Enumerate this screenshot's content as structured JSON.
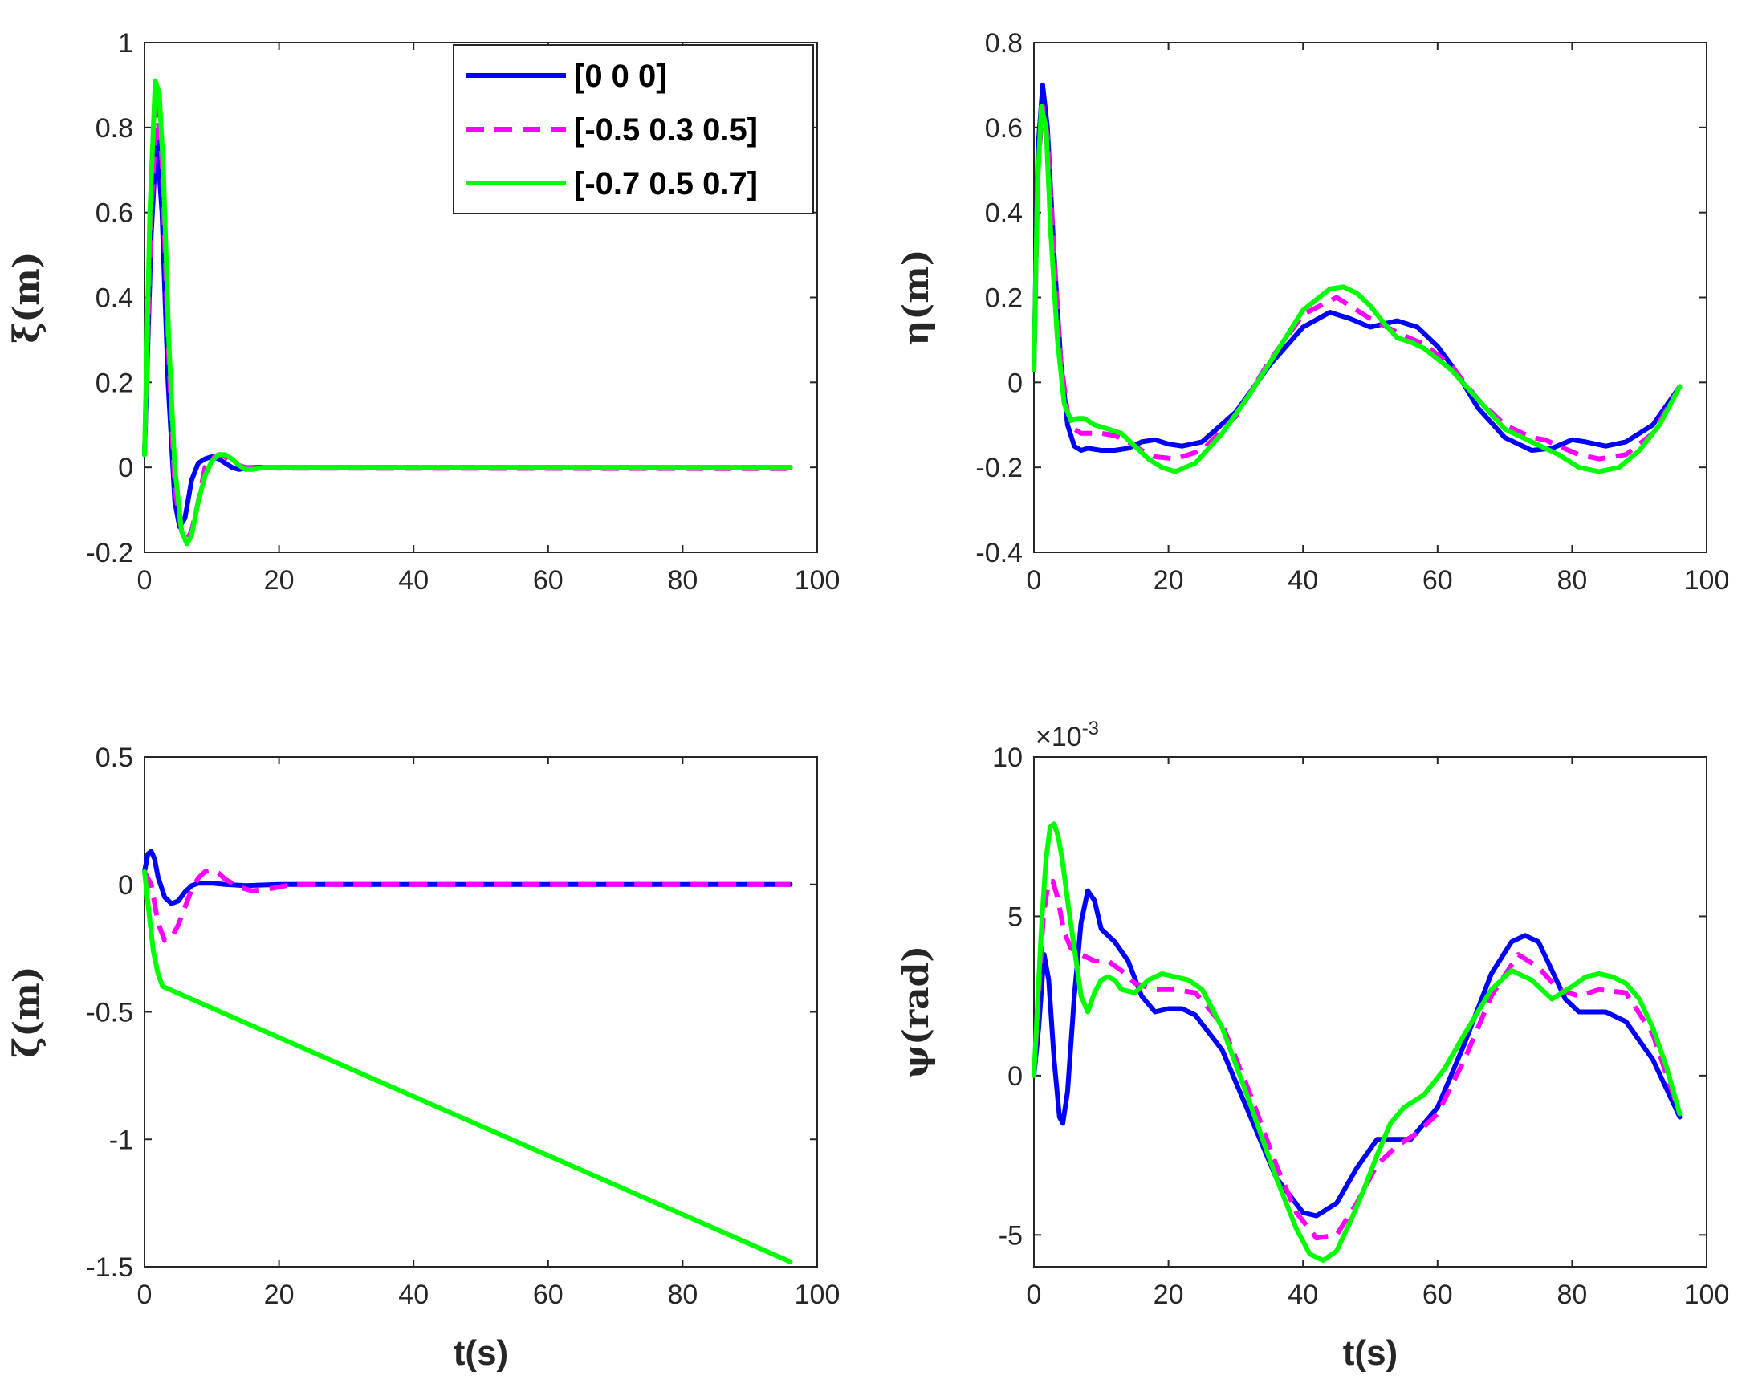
{
  "chart_data": [
    {
      "type": "line",
      "panel": "top-left",
      "xlabel": "",
      "ylabel": "ξ(m)",
      "xlim": [
        0,
        100
      ],
      "ylim": [
        -0.2,
        1
      ],
      "xticks": [
        0,
        20,
        40,
        60,
        80,
        100
      ],
      "xtick_labels": [
        "0",
        "20",
        "40",
        "60",
        "80",
        "100"
      ],
      "yticks": [
        -0.2,
        0,
        0.2,
        0.4,
        0.6,
        0.8,
        1
      ],
      "ytick_labels": [
        "-0.2",
        "0",
        "0.2",
        "0.4",
        "0.6",
        "0.8",
        "1"
      ],
      "exponent_label": "",
      "legend": {
        "location": "top-right"
      },
      "series": [
        {
          "name": "[0 0 0]",
          "color": "#0000FF",
          "style": "solid",
          "x": [
            0,
            1,
            1.8,
            2.6,
            3.5,
            4.5,
            5.2,
            6,
            7,
            8,
            9,
            10,
            11,
            12,
            13,
            14,
            16,
            20,
            96
          ],
          "y": [
            0.03,
            0.55,
            0.78,
            0.6,
            0.2,
            -0.08,
            -0.14,
            -0.12,
            -0.03,
            0.01,
            0.02,
            0.025,
            0.02,
            0.01,
            0.0,
            -0.005,
            0.0,
            0.0,
            0.0
          ]
        },
        {
          "name": "[-0.5 0.3 0.5]",
          "color": "#FF00FF",
          "style": "dashed",
          "x": [
            0,
            1,
            1.8,
            2.6,
            3.5,
            4.5,
            5.5,
            6.3,
            7,
            8,
            9,
            10,
            11,
            12,
            13,
            15,
            20,
            96
          ],
          "y": [
            0.03,
            0.6,
            0.85,
            0.72,
            0.3,
            -0.05,
            -0.15,
            -0.17,
            -0.15,
            -0.08,
            0.0,
            0.02,
            0.03,
            0.025,
            0.01,
            0.0,
            -0.002,
            -0.003
          ]
        },
        {
          "name": "[-0.7 0.5 0.7]",
          "color": "#00FF00",
          "style": "solid",
          "x": [
            0,
            0.8,
            1.6,
            2.2,
            2.8,
            3.6,
            4.5,
            5.5,
            6.3,
            7,
            8,
            9,
            10,
            11,
            12,
            13,
            14,
            15,
            16,
            18,
            20,
            96
          ],
          "y": [
            0.03,
            0.6,
            0.91,
            0.88,
            0.7,
            0.3,
            0.0,
            -0.15,
            -0.18,
            -0.16,
            -0.08,
            -0.02,
            0.015,
            0.03,
            0.03,
            0.02,
            0.005,
            -0.005,
            -0.005,
            0.0,
            0.0,
            0.0
          ]
        }
      ]
    },
    {
      "type": "line",
      "panel": "top-right",
      "xlabel": "",
      "ylabel": "η(m)",
      "xlim": [
        0,
        100
      ],
      "ylim": [
        -0.4,
        0.8
      ],
      "xticks": [
        0,
        20,
        40,
        60,
        80,
        100
      ],
      "xtick_labels": [
        "0",
        "20",
        "40",
        "60",
        "80",
        "100"
      ],
      "yticks": [
        -0.4,
        -0.2,
        0,
        0.2,
        0.4,
        0.6,
        0.8
      ],
      "ytick_labels": [
        "-0.4",
        "-0.2",
        "0",
        "0.2",
        "0.4",
        "0.6",
        "0.8"
      ],
      "exponent_label": "",
      "series": [
        {
          "name": "[0 0 0]",
          "color": "#0000FF",
          "style": "solid",
          "x": [
            0,
            0.6,
            1.3,
            2,
            3,
            4,
            5,
            6,
            7,
            8,
            10,
            12,
            14,
            16,
            18,
            20,
            22,
            25,
            30,
            35,
            40,
            44,
            47,
            50,
            54,
            57,
            60,
            63,
            66,
            70,
            74,
            77,
            80,
            82,
            85,
            88,
            92,
            96
          ],
          "y": [
            0.03,
            0.55,
            0.7,
            0.6,
            0.3,
            0.05,
            -0.1,
            -0.15,
            -0.16,
            -0.155,
            -0.16,
            -0.16,
            -0.155,
            -0.14,
            -0.135,
            -0.145,
            -0.15,
            -0.14,
            -0.07,
            0.04,
            0.13,
            0.165,
            0.15,
            0.13,
            0.145,
            0.13,
            0.085,
            0.02,
            -0.06,
            -0.13,
            -0.16,
            -0.155,
            -0.135,
            -0.14,
            -0.15,
            -0.14,
            -0.1,
            -0.01
          ]
        },
        {
          "name": "[-0.5 0.3 0.5]",
          "color": "#FF00FF",
          "style": "dashed",
          "x": [
            0,
            0.6,
            1.3,
            2,
            3,
            4,
            5,
            6,
            7,
            8,
            10,
            12,
            14,
            16,
            18,
            21,
            25,
            30,
            35,
            40,
            45,
            50,
            55,
            58,
            62,
            66,
            70,
            74,
            76,
            78,
            81,
            84,
            88,
            92,
            96
          ],
          "y": [
            0.03,
            0.5,
            0.65,
            0.58,
            0.3,
            0.05,
            -0.07,
            -0.11,
            -0.12,
            -0.12,
            -0.12,
            -0.125,
            -0.14,
            -0.16,
            -0.175,
            -0.18,
            -0.16,
            -0.08,
            0.05,
            0.16,
            0.2,
            0.15,
            0.11,
            0.09,
            0.04,
            -0.04,
            -0.1,
            -0.13,
            -0.135,
            -0.15,
            -0.17,
            -0.18,
            -0.17,
            -0.12,
            -0.01
          ]
        },
        {
          "name": "[-0.7 0.5 0.7]",
          "color": "#00FF00",
          "style": "solid",
          "x": [
            0,
            0.5,
            1.1,
            1.8,
            2.5,
            3.5,
            4.5,
            5.5,
            6.5,
            7.5,
            9,
            11,
            13,
            15,
            17,
            19,
            21,
            24,
            28,
            32,
            36,
            40,
            44,
            46,
            48,
            50,
            52,
            54,
            56,
            58,
            62,
            66,
            70,
            74,
            78,
            81,
            84,
            87,
            90,
            93,
            96
          ],
          "y": [
            0.03,
            0.45,
            0.65,
            0.6,
            0.35,
            0.1,
            -0.05,
            -0.09,
            -0.085,
            -0.085,
            -0.1,
            -0.11,
            -0.12,
            -0.15,
            -0.18,
            -0.2,
            -0.21,
            -0.19,
            -0.12,
            -0.03,
            0.07,
            0.17,
            0.22,
            0.225,
            0.21,
            0.18,
            0.14,
            0.105,
            0.095,
            0.08,
            0.03,
            -0.04,
            -0.11,
            -0.14,
            -0.17,
            -0.2,
            -0.21,
            -0.2,
            -0.16,
            -0.1,
            -0.01
          ]
        }
      ]
    },
    {
      "type": "line",
      "panel": "bottom-left",
      "xlabel": "t(s)",
      "ylabel": "ζ(m)",
      "xlim": [
        0,
        100
      ],
      "ylim": [
        -1.5,
        0.5
      ],
      "xticks": [
        0,
        20,
        40,
        60,
        80,
        100
      ],
      "xtick_labels": [
        "0",
        "20",
        "40",
        "60",
        "80",
        "100"
      ],
      "yticks": [
        -1.5,
        -1,
        -0.5,
        0,
        0.5
      ],
      "ytick_labels": [
        "-1.5",
        "-1",
        "-0.5",
        "0",
        "0.5"
      ],
      "exponent_label": "",
      "series": [
        {
          "name": "[0 0 0]",
          "color": "#0000FF",
          "style": "solid",
          "x": [
            0,
            0.5,
            1,
            1.5,
            2,
            3,
            4,
            5,
            6,
            7,
            8,
            10,
            12,
            15,
            20,
            96
          ],
          "y": [
            0.05,
            0.12,
            0.13,
            0.1,
            0.03,
            -0.05,
            -0.075,
            -0.065,
            -0.03,
            -0.005,
            0.005,
            0.005,
            0.0,
            -0.005,
            0.0,
            0.0
          ]
        },
        {
          "name": "[-0.5 0.3 0.5]",
          "color": "#FF00FF",
          "style": "dashed",
          "x": [
            0,
            1,
            2,
            3,
            4,
            5,
            6,
            7,
            8,
            9,
            10,
            11,
            12,
            14,
            16,
            18,
            20,
            22,
            25,
            96
          ],
          "y": [
            0.05,
            0.0,
            -0.15,
            -0.22,
            -0.21,
            -0.16,
            -0.09,
            -0.02,
            0.025,
            0.05,
            0.055,
            0.045,
            0.02,
            -0.01,
            -0.025,
            -0.02,
            -0.01,
            0.0,
            0.0,
            0.0
          ]
        },
        {
          "name": "[-0.7 0.5 0.7]",
          "color": "#00FF00",
          "style": "solid",
          "x": [
            0,
            0.7,
            1.3,
            2,
            2.7,
            96
          ],
          "y": [
            0.05,
            -0.12,
            -0.26,
            -0.35,
            -0.4,
            -1.48
          ]
        }
      ]
    },
    {
      "type": "line",
      "panel": "bottom-right",
      "xlabel": "t(s)",
      "ylabel": "ψ(rad)",
      "xlim": [
        0,
        100
      ],
      "ylim": [
        -6,
        10
      ],
      "xticks": [
        0,
        20,
        40,
        60,
        80,
        100
      ],
      "xtick_labels": [
        "0",
        "20",
        "40",
        "60",
        "80",
        "100"
      ],
      "yticks": [
        -5,
        0,
        5,
        10
      ],
      "ytick_labels": [
        "-5",
        "0",
        "5",
        "10"
      ],
      "exponent_label": "×10",
      "exponent_power": "-3",
      "series": [
        {
          "name": "[0 0 0]",
          "color": "#0000FF",
          "style": "solid",
          "x": [
            0,
            0.7,
            1.5,
            2.2,
            3,
            3.8,
            4.3,
            5,
            6,
            7,
            8,
            9,
            10,
            12,
            14,
            16,
            18,
            20,
            22,
            24,
            28,
            32,
            36,
            40,
            42,
            45,
            48,
            51,
            53,
            56,
            60,
            64,
            68,
            71,
            73,
            75,
            77,
            79,
            81,
            83,
            85,
            88,
            92,
            96
          ],
          "y": [
            0,
            1.5,
            3.8,
            3.0,
            0.5,
            -1.3,
            -1.5,
            -0.5,
            2.5,
            4.8,
            5.8,
            5.5,
            4.6,
            4.2,
            3.6,
            2.5,
            2.0,
            2.1,
            2.1,
            1.9,
            0.8,
            -1.2,
            -3.2,
            -4.3,
            -4.4,
            -4.0,
            -2.9,
            -2.0,
            -2.0,
            -2.0,
            -1.0,
            1.0,
            3.2,
            4.2,
            4.4,
            4.2,
            3.3,
            2.4,
            2.0,
            2.0,
            2.0,
            1.7,
            0.5,
            -1.3
          ]
        },
        {
          "name": "[-0.5 0.3 0.5]",
          "color": "#FF00FF",
          "style": "dashed",
          "x": [
            0,
            0.7,
            1.4,
            2.1,
            2.8,
            3.5,
            4.5,
            5.5,
            7,
            9,
            11,
            13,
            15,
            18,
            21,
            24,
            28,
            32,
            36,
            39,
            42,
            45,
            48,
            51,
            54,
            57,
            60,
            64,
            68,
            72,
            75,
            78,
            81,
            84,
            88,
            92,
            96
          ],
          "y": [
            0,
            2.5,
            5.0,
            6.0,
            6.1,
            5.6,
            4.5,
            4.0,
            3.8,
            3.6,
            3.6,
            3.3,
            2.9,
            2.7,
            2.7,
            2.6,
            1.6,
            -0.5,
            -2.8,
            -4.3,
            -5.1,
            -5.0,
            -4.0,
            -2.8,
            -2.2,
            -1.8,
            -1.2,
            0.5,
            2.5,
            3.8,
            3.4,
            2.7,
            2.5,
            2.7,
            2.6,
            1.3,
            -1.2
          ]
        },
        {
          "name": "[-0.7 0.5 0.7]",
          "color": "#00FF00",
          "style": "solid",
          "x": [
            0,
            0.6,
            1.2,
            1.8,
            2.4,
            3,
            3.6,
            4.2,
            5,
            6,
            7,
            8,
            9,
            10,
            11,
            12,
            13,
            15,
            17,
            19,
            21,
            23,
            25,
            28,
            32,
            36,
            39,
            41,
            43,
            45,
            47,
            49,
            51,
            53,
            55,
            58,
            61,
            64,
            68,
            71,
            74,
            77,
            80,
            82,
            84,
            86,
            88,
            90,
            92,
            94,
            96
          ],
          "y": [
            0,
            2.5,
            5.0,
            6.8,
            7.8,
            7.9,
            7.5,
            6.8,
            5.5,
            4.0,
            2.5,
            2.0,
            2.6,
            3.0,
            3.1,
            3.0,
            2.7,
            2.6,
            3.0,
            3.2,
            3.1,
            3.0,
            2.7,
            1.5,
            -0.8,
            -3.2,
            -4.8,
            -5.6,
            -5.8,
            -5.5,
            -4.6,
            -3.6,
            -2.5,
            -1.5,
            -1.0,
            -0.6,
            0.2,
            1.3,
            2.7,
            3.3,
            3.0,
            2.4,
            2.8,
            3.1,
            3.2,
            3.1,
            2.9,
            2.4,
            1.5,
            0.3,
            -1.2
          ]
        }
      ]
    }
  ]
}
